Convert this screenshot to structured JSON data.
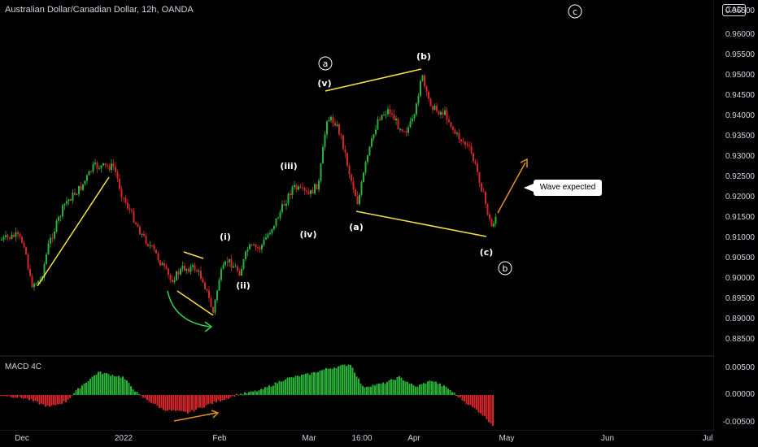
{
  "chart": {
    "title": "Australian Dollar/Canadian Dollar, 12h, OANDA",
    "currency": "CAD",
    "macd_label": "MACD 4C",
    "callout_text": "Wave expected",
    "colors": {
      "up": "#2ab13a",
      "down": "#d3262a",
      "wave_line": "#f5e14a",
      "arrow_orange": "#e39224",
      "arrow_green": "#36d24a",
      "background": "#000000"
    },
    "price_ticks": [
      "0.96500",
      "0.96000",
      "0.95500",
      "0.95000",
      "0.94500",
      "0.94000",
      "0.93500",
      "0.93000",
      "0.92500",
      "0.92000",
      "0.91500",
      "0.91000",
      "0.90500",
      "0.90000",
      "0.89500",
      "0.89000",
      "0.88500"
    ],
    "macd_ticks": [
      "0.00500",
      "0.00000",
      "-0.00500"
    ],
    "time_labels": [
      "Dec",
      "2022",
      "Feb",
      "Mar",
      "16:00",
      "Apr",
      "May",
      "Jun",
      "Jul"
    ],
    "wave_labels": [
      "(b)",
      "(v)",
      "(iii)",
      "(iv)",
      "(i)",
      "(ii)",
      "(a)",
      "(c)"
    ],
    "circle_labels": [
      "a",
      "b",
      "c"
    ]
  }
}
